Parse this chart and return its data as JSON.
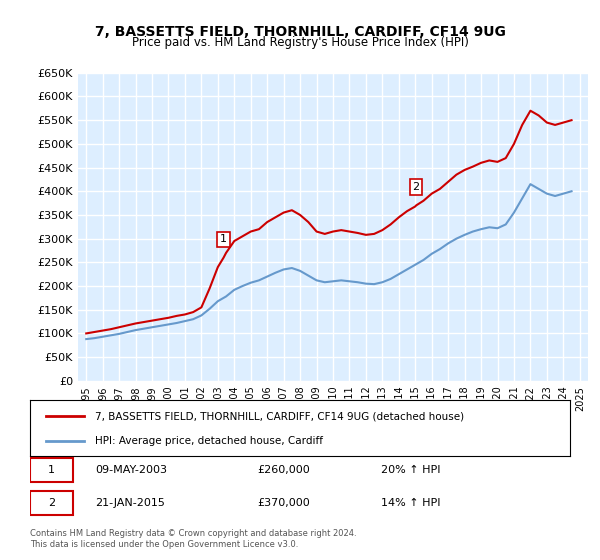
{
  "title": "7, BASSETTS FIELD, THORNHILL, CARDIFF, CF14 9UG",
  "subtitle": "Price paid vs. HM Land Registry's House Price Index (HPI)",
  "red_label": "7, BASSETTS FIELD, THORNHILL, CARDIFF, CF14 9UG (detached house)",
  "blue_label": "HPI: Average price, detached house, Cardiff",
  "copyright": "Contains HM Land Registry data © Crown copyright and database right 2024.\nThis data is licensed under the Open Government Licence v3.0.",
  "ylim": [
    0,
    650000
  ],
  "yticks": [
    0,
    50000,
    100000,
    150000,
    200000,
    250000,
    300000,
    350000,
    400000,
    450000,
    500000,
    550000,
    600000,
    650000
  ],
  "red_color": "#cc0000",
  "blue_color": "#6699cc",
  "background_plot": "#ddeeff",
  "background_fig": "#ffffff",
  "grid_color": "#ffffff",
  "marker1_year": 2003.35,
  "marker1_price": 260000,
  "marker2_year": 2015.05,
  "marker2_price": 370000,
  "ann1_date": "09-MAY-2003",
  "ann1_price": "£260,000",
  "ann1_hpi": "20% ↑ HPI",
  "ann2_date": "21-JAN-2015",
  "ann2_price": "£370,000",
  "ann2_hpi": "14% ↑ HPI",
  "red_x": [
    1995,
    1995.5,
    1996,
    1996.5,
    1997,
    1997.5,
    1998,
    1998.5,
    1999,
    1999.5,
    2000,
    2000.5,
    2001,
    2001.5,
    2002,
    2002.5,
    2003,
    2003.35,
    2003.5,
    2004,
    2004.5,
    2005,
    2005.5,
    2006,
    2006.5,
    2007,
    2007.5,
    2008,
    2008.5,
    2009,
    2009.5,
    2010,
    2010.5,
    2011,
    2011.5,
    2012,
    2012.5,
    2013,
    2013.5,
    2014,
    2014.5,
    2015,
    2015.05,
    2015.5,
    2016,
    2016.5,
    2017,
    2017.5,
    2018,
    2018.5,
    2019,
    2019.5,
    2020,
    2020.5,
    2021,
    2021.5,
    2022,
    2022.5,
    2023,
    2023.5,
    2024,
    2024.5
  ],
  "red_y": [
    100000,
    103000,
    106000,
    109000,
    113000,
    117000,
    121000,
    124000,
    127000,
    130000,
    133000,
    137000,
    140000,
    145000,
    155000,
    195000,
    240000,
    260000,
    270000,
    295000,
    305000,
    315000,
    320000,
    335000,
    345000,
    355000,
    360000,
    350000,
    335000,
    315000,
    310000,
    315000,
    318000,
    315000,
    312000,
    308000,
    310000,
    318000,
    330000,
    345000,
    358000,
    368000,
    370000,
    380000,
    395000,
    405000,
    420000,
    435000,
    445000,
    452000,
    460000,
    465000,
    462000,
    470000,
    500000,
    540000,
    570000,
    560000,
    545000,
    540000,
    545000,
    550000
  ],
  "blue_x": [
    1995,
    1995.5,
    1996,
    1996.5,
    1997,
    1997.5,
    1998,
    1998.5,
    1999,
    1999.5,
    2000,
    2000.5,
    2001,
    2001.5,
    2002,
    2002.5,
    2003,
    2003.5,
    2004,
    2004.5,
    2005,
    2005.5,
    2006,
    2006.5,
    2007,
    2007.5,
    2008,
    2008.5,
    2009,
    2009.5,
    2010,
    2010.5,
    2011,
    2011.5,
    2012,
    2012.5,
    2013,
    2013.5,
    2014,
    2014.5,
    2015,
    2015.5,
    2016,
    2016.5,
    2017,
    2017.5,
    2018,
    2018.5,
    2019,
    2019.5,
    2020,
    2020.5,
    2021,
    2021.5,
    2022,
    2022.5,
    2023,
    2023.5,
    2024,
    2024.5
  ],
  "blue_y": [
    88000,
    90000,
    93000,
    96000,
    99000,
    103000,
    107000,
    110000,
    113000,
    116000,
    119000,
    122000,
    126000,
    130000,
    138000,
    152000,
    168000,
    178000,
    192000,
    200000,
    207000,
    212000,
    220000,
    228000,
    235000,
    238000,
    232000,
    222000,
    212000,
    208000,
    210000,
    212000,
    210000,
    208000,
    205000,
    204000,
    208000,
    215000,
    225000,
    235000,
    245000,
    255000,
    268000,
    278000,
    290000,
    300000,
    308000,
    315000,
    320000,
    324000,
    322000,
    330000,
    355000,
    385000,
    415000,
    405000,
    395000,
    390000,
    395000,
    400000
  ]
}
